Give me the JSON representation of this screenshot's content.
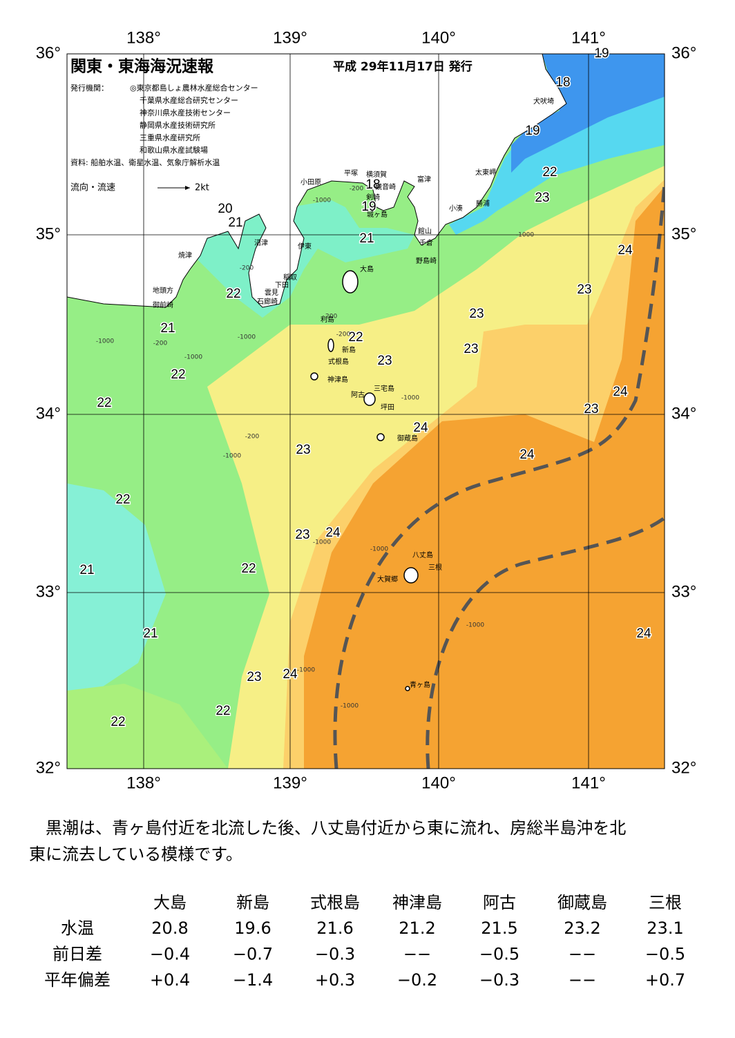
{
  "header": {
    "title": "関東・東海海況速報",
    "date": "平成 29年11月17日 発行",
    "publisher_label": "発行機関：",
    "publishers": [
      "◎東京都島しょ農林水産総合センター",
      "千葉県水産総合研究センター",
      "神奈川県水産技術センター",
      "静岡県水産技術研究所",
      "三重県水産研究所",
      "和歌山県水産試験場"
    ],
    "source": "資料: 船舶水温、衛星水温、気象庁解析水温",
    "legend": "流向・流速",
    "legend_unit": "2kt"
  },
  "map": {
    "lon_labels": [
      "138°",
      "139°",
      "140°",
      "141°"
    ],
    "lat_labels": [
      "36°",
      "35°",
      "34°",
      "33°",
      "32°"
    ],
    "isotherms": [
      19,
      18,
      19,
      22,
      23,
      20,
      21,
      18,
      19,
      21,
      24,
      23,
      22,
      23,
      21,
      22,
      23,
      23,
      22,
      24,
      22,
      23,
      24,
      23,
      24,
      22,
      23,
      24,
      22,
      21,
      21,
      24,
      23,
      24,
      22,
      22
    ],
    "places": [
      "犬吠埼",
      "太東岬",
      "勝浦",
      "小湊",
      "富津",
      "館山",
      "千倉",
      "野島崎",
      "横須賀",
      "観音崎",
      "平塚",
      "小田原",
      "剣崎",
      "城ヶ島",
      "沼津",
      "伊東",
      "焼津",
      "稲取",
      "下田",
      "雲見",
      "石廊崎",
      "地頭方",
      "御前崎",
      "大島",
      "利島",
      "新島",
      "式根島",
      "神津島",
      "三宅島",
      "阿古",
      "坪田",
      "御蔵島",
      "八丈島",
      "三根",
      "大賀郷",
      "青ヶ島"
    ],
    "depths": [
      "-200",
      "-200",
      "-200",
      "-200",
      "-200",
      "-200",
      "-1000",
      "-1000",
      "-1000",
      "-1000",
      "-1000",
      "-1000",
      "-1000",
      "-1000",
      "-1000",
      "-1000",
      "-1000",
      "-1000"
    ]
  },
  "summary": [
    "黒潮は、青ヶ島付近を北流した後、八丈島付近から東に流れ、房総半島沖を北",
    "東に流去している模様です。"
  ],
  "table": {
    "columns": [
      "大島",
      "新島",
      "式根島",
      "神津島",
      "阿古",
      "御蔵島",
      "三根"
    ],
    "rows": [
      {
        "label": "水温",
        "cells": [
          "20.8",
          "19.6",
          "21.6",
          "21.2",
          "21.5",
          "23.2",
          "23.1"
        ]
      },
      {
        "label": "前日差",
        "cells": [
          "−0.4",
          "−0.7",
          "−0.3",
          "−−",
          "−0.5",
          "−−",
          "−0.5"
        ]
      },
      {
        "label": "平年偏差",
        "cells": [
          "+0.4",
          "−1.4",
          "+0.3",
          "−0.2",
          "−0.3",
          "−−",
          "+0.7"
        ]
      }
    ]
  }
}
